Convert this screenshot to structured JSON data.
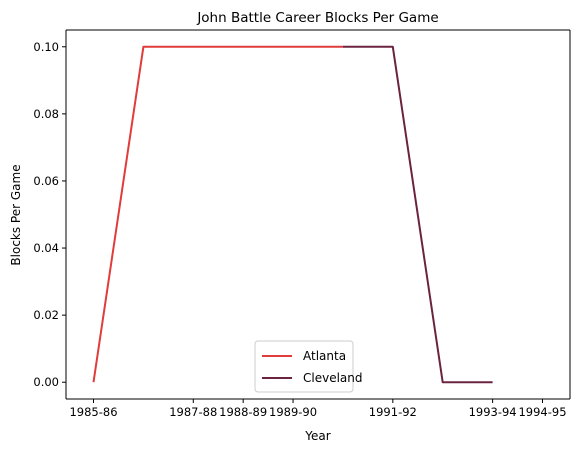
{
  "chart_data": {
    "type": "line",
    "title": "John Battle  Career Blocks Per Game",
    "xlabel": "Year",
    "ylabel": "Blocks Per Game",
    "x_tick_labels": [
      "1985-86",
      "1987-88",
      "1988-89",
      "1989-90",
      "1991-92",
      "1993-94",
      "1994-95"
    ],
    "ylim": [
      -0.005,
      0.105
    ],
    "yticks": [
      0.0,
      0.02,
      0.04,
      0.06,
      0.08,
      0.1
    ],
    "ytick_labels": [
      "0.00",
      "0.02",
      "0.04",
      "0.06",
      "0.08",
      "0.10"
    ],
    "grid": false,
    "legend_position": "lower-center",
    "series": [
      {
        "name": "Atlanta",
        "color": "#e03c3c",
        "x": [
          "1985-86",
          "1986-87",
          "1987-88",
          "1988-89",
          "1989-90",
          "1990-91"
        ],
        "values": [
          0.0,
          0.1,
          0.1,
          0.1,
          0.1,
          0.1
        ]
      },
      {
        "name": "Cleveland",
        "color": "#6b2340",
        "x": [
          "1990-91",
          "1991-92",
          "1992-93",
          "1993-94"
        ],
        "values": [
          0.1,
          0.1,
          0.0,
          0.0
        ]
      }
    ]
  }
}
